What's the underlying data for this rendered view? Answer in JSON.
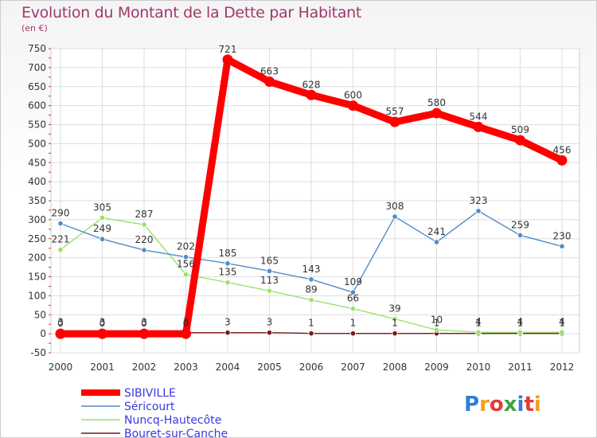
{
  "title": "Evolution du Montant de la Dette par Habitant",
  "unit_label": "(en €)",
  "logo": {
    "text": "Proxiti"
  },
  "chart_data": {
    "type": "line",
    "title": "Evolution du Montant de la Dette par Habitant",
    "ylabel": "(en €)",
    "xlabel": "",
    "x": [
      "2000",
      "2001",
      "2002",
      "2003",
      "2004",
      "2005",
      "2006",
      "2007",
      "2008",
      "2009",
      "2010",
      "2011",
      "2012"
    ],
    "ylim": [
      -50,
      750
    ],
    "yticks": [
      -50,
      0,
      50,
      100,
      150,
      200,
      250,
      300,
      350,
      400,
      450,
      500,
      550,
      600,
      650,
      700,
      750
    ],
    "grid": true,
    "legend_position": "bottom-left",
    "series": [
      {
        "name": "SIBIVILLE",
        "color": "#ff0000",
        "values": [
          0,
          0,
          0,
          0,
          721,
          663,
          628,
          600,
          557,
          580,
          544,
          509,
          456
        ]
      },
      {
        "name": "Séricourt",
        "color": "#4f8ccb",
        "values": [
          290,
          249,
          220,
          202,
          185,
          165,
          143,
          109,
          308,
          241,
          323,
          259,
          230
        ]
      },
      {
        "name": "Nuncq-Hautecôte",
        "color": "#99e26b",
        "values": [
          221,
          305,
          287,
          156,
          135,
          113,
          89,
          66,
          39,
          10,
          4,
          4,
          4
        ]
      },
      {
        "name": "Bouret-sur-Canche",
        "color": "#7a1a1a",
        "values": [
          3,
          3,
          3,
          3,
          3,
          3,
          1,
          1,
          1,
          1,
          1,
          1,
          1
        ]
      }
    ]
  }
}
